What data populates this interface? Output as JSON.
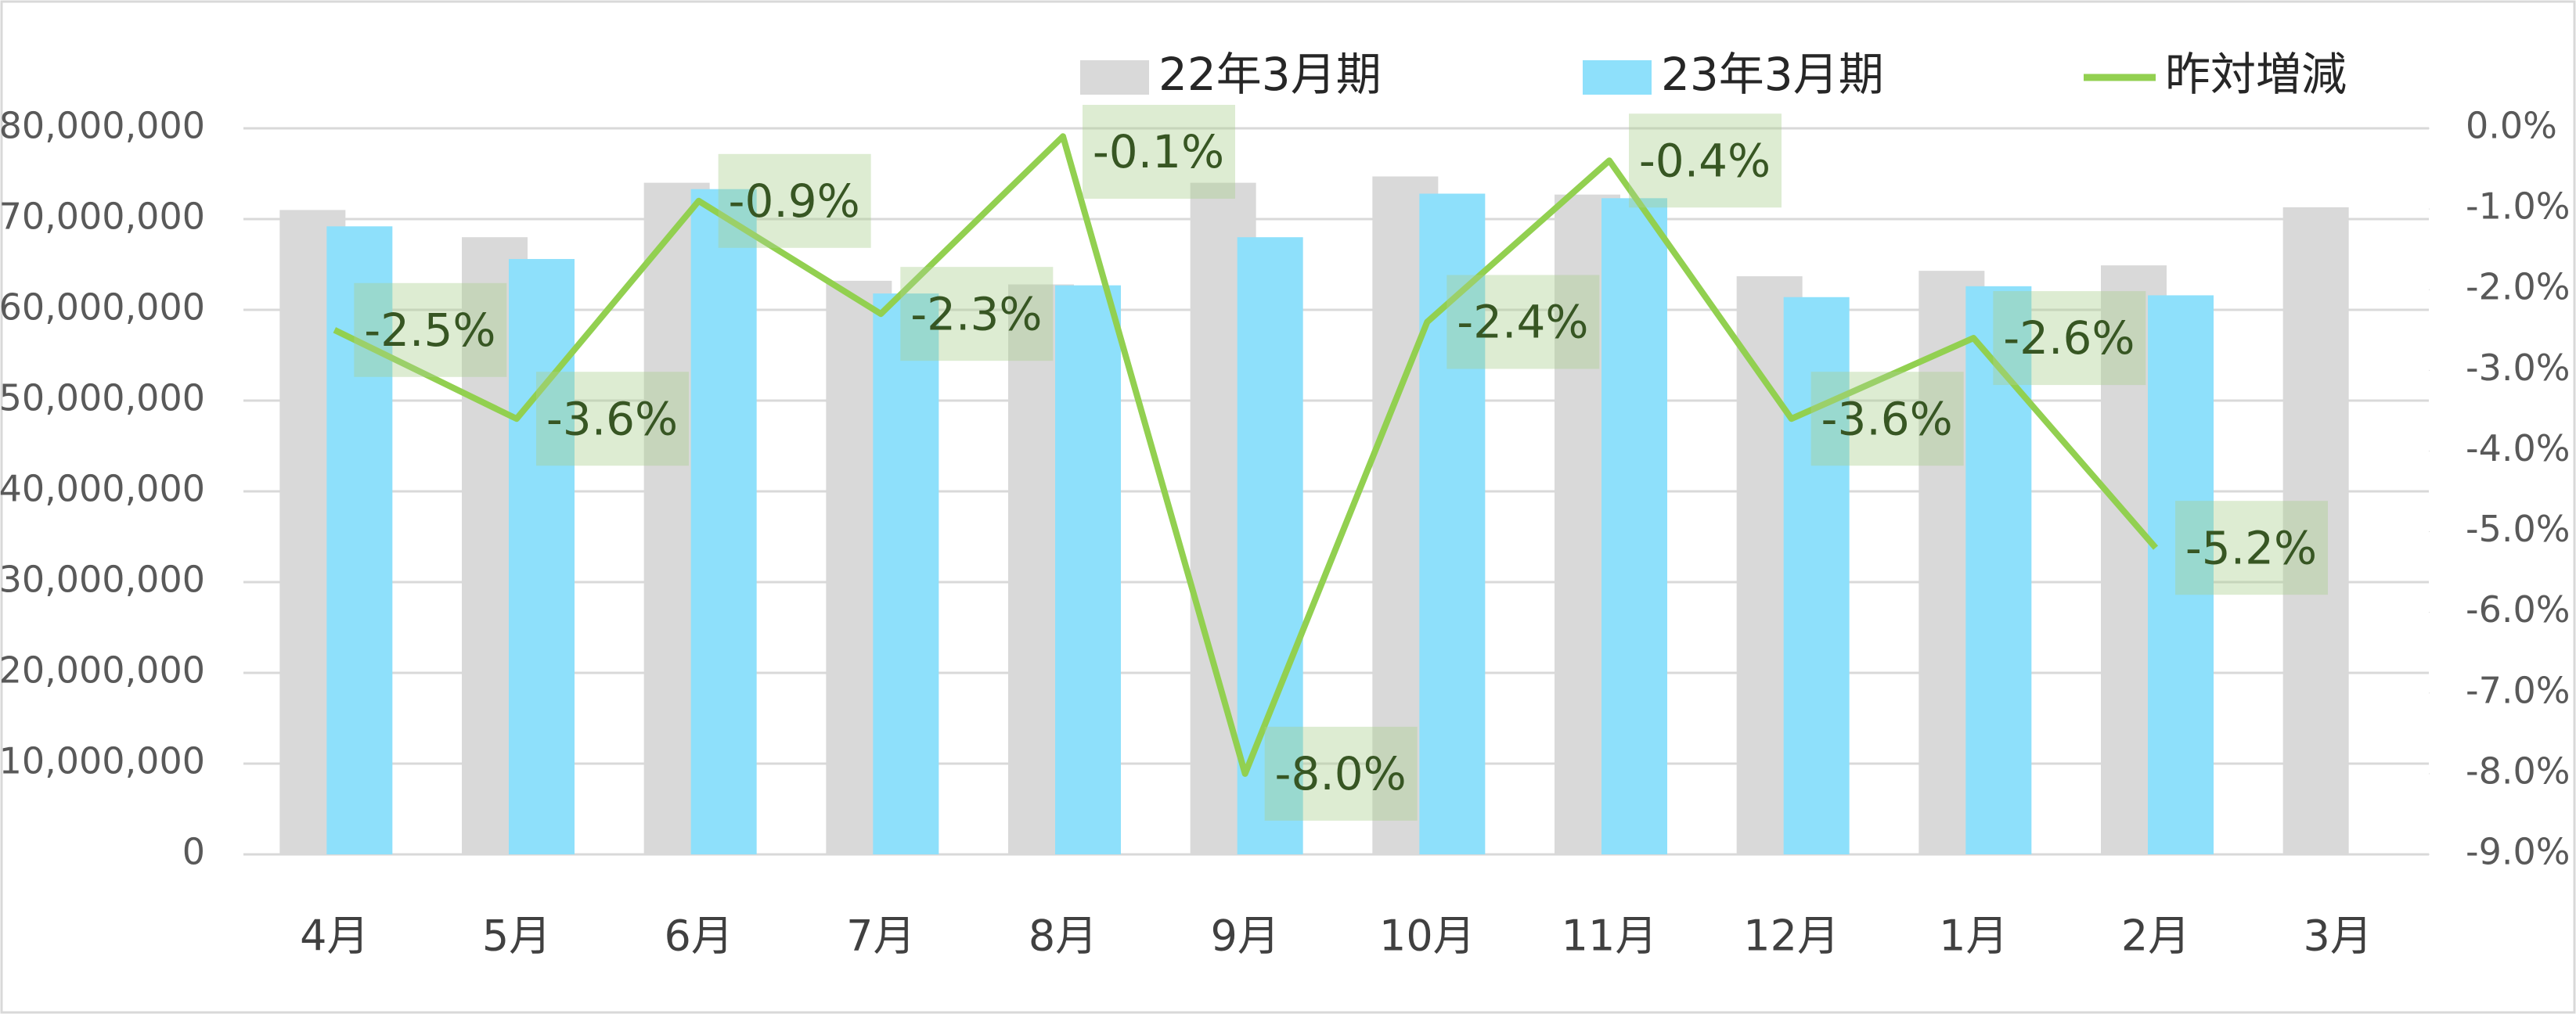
{
  "chart_data": {
    "type": "bar-line",
    "categories": [
      "4月",
      "5月",
      "6月",
      "7月",
      "8月",
      "9月",
      "10月",
      "11月",
      "12月",
      "1月",
      "2月",
      "3月"
    ],
    "series": [
      {
        "name": "22年3月期",
        "type": "bar",
        "color": "#d9d9d9",
        "values": [
          71000000,
          68000000,
          74000000,
          63200000,
          62800000,
          74000000,
          74700000,
          72700000,
          63700000,
          64300000,
          64900000,
          71300000
        ]
      },
      {
        "name": "23年3月期",
        "type": "bar",
        "color": "#8ee0fb",
        "values": [
          69200000,
          65600000,
          73300000,
          61800000,
          62700000,
          68000000,
          72800000,
          72300000,
          61400000,
          62600000,
          61600000,
          null
        ]
      },
      {
        "name": "昨対増減",
        "type": "line",
        "axis": "y2",
        "color": "#92d050",
        "values": [
          -2.5,
          -3.6,
          -0.9,
          -2.3,
          -0.1,
          -8.0,
          -2.4,
          -0.4,
          -3.6,
          -2.6,
          -5.2,
          null
        ],
        "value_labels": [
          "-2.5%",
          "-3.6%",
          "-0.9%",
          "-2.3%",
          "-0.1%",
          "-8.0%",
          "-2.4%",
          "-0.4%",
          "-3.6%",
          "-2.6%",
          "-5.2%",
          null
        ]
      }
    ],
    "ylim": [
      0,
      80000000
    ],
    "yticks": [
      0,
      {
        "value": 10000000,
        "label": "10,000,000"
      },
      {
        "value": 20000000,
        "label": "20,000,000"
      },
      {
        "value": 30000000,
        "label": "30,000,000"
      },
      {
        "value": 40000000,
        "label": "40,000,000"
      },
      {
        "value": 50000000,
        "label": "50,000,000"
      },
      {
        "value": 60000000,
        "label": "60,000,000"
      },
      {
        "value": 70000000,
        "label": "70,000,000"
      },
      {
        "value": 80000000,
        "label": "80,000,000"
      }
    ],
    "y2lim": [
      -9,
      0
    ],
    "y2ticks": [
      {
        "value": 0,
        "label": "0.0%"
      },
      {
        "value": -1,
        "label": "-1.0%"
      },
      {
        "value": -2,
        "label": "-2.0%"
      },
      {
        "value": -3,
        "label": "-3.0%"
      },
      {
        "value": -4,
        "label": "-4.0%"
      },
      {
        "value": -5,
        "label": "-5.0%"
      },
      {
        "value": -6,
        "label": "-6.0%"
      },
      {
        "value": -7,
        "label": "-7.0%"
      },
      {
        "value": -8,
        "label": "-8.0%"
      },
      {
        "value": -9,
        "label": "-9.0%"
      }
    ],
    "grid": true,
    "legend": "top"
  }
}
